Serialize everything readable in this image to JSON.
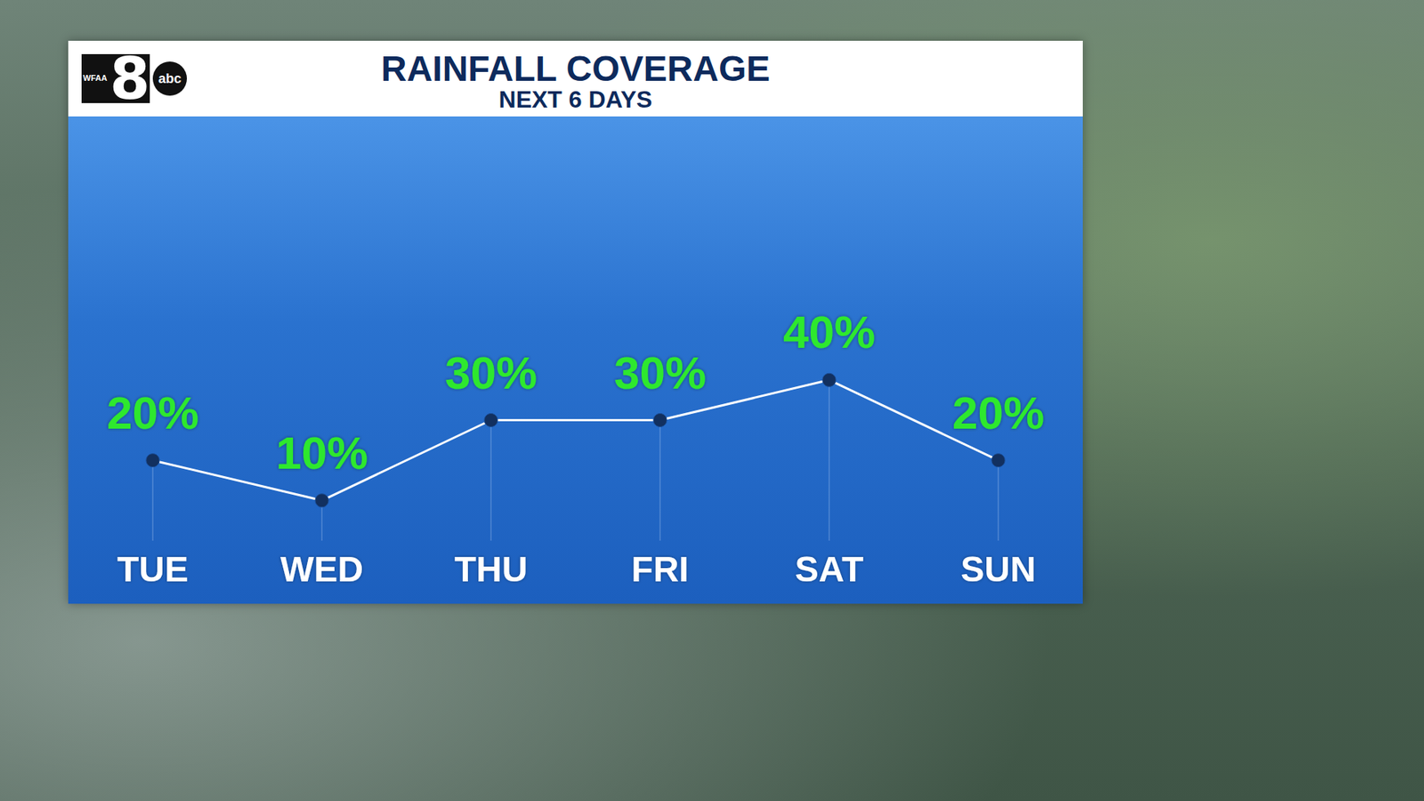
{
  "logo": {
    "station": "WFAA",
    "channel": "8",
    "network": "abc"
  },
  "chart_data": {
    "type": "line",
    "title": "RAINFALL COVERAGE",
    "subtitle": "NEXT 6 DAYS",
    "categories": [
      "TUE",
      "WED",
      "THU",
      "FRI",
      "SAT",
      "SUN"
    ],
    "values": [
      20,
      10,
      30,
      30,
      40,
      20
    ],
    "value_labels": [
      "20%",
      "10%",
      "30%",
      "30%",
      "40%",
      "20%"
    ],
    "color": "#ffffff",
    "marker": "circle",
    "data_labels": true,
    "ylim": [
      0,
      60
    ],
    "yticks": [
      0,
      60
    ],
    "grid": false,
    "tick_labels": "x"
  }
}
